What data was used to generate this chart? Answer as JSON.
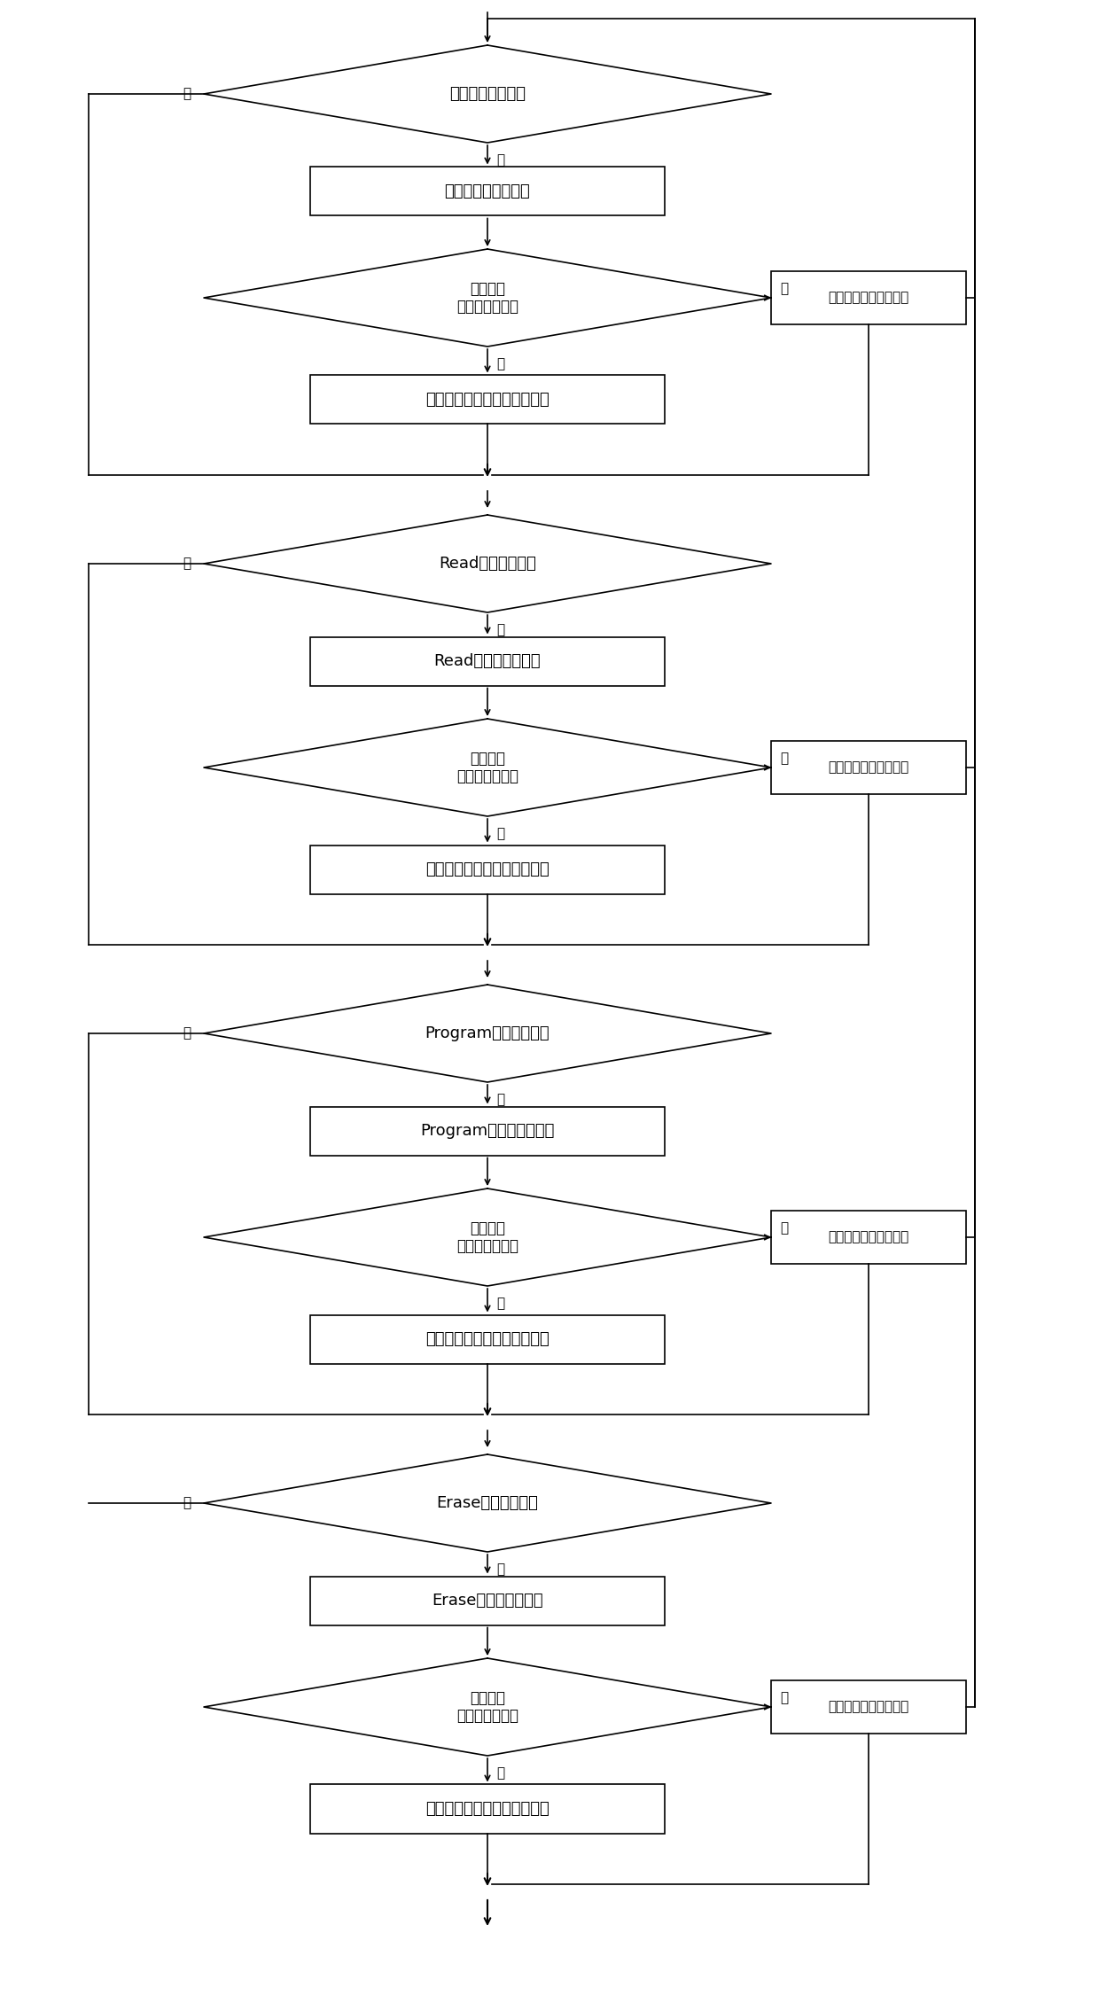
{
  "bg_color": "#ffffff",
  "line_color": "#000000",
  "text_color": "#000000",
  "box_fill": "#ffffff",
  "font_size": 13,
  "small_font": 11,
  "sections": [
    {
      "diamond_text": "配置队列是否为空",
      "rect1_text": "配置队列取一个命令",
      "diamond2_text": "查策略表\n能否在通道执行",
      "rect2_text": "下发命令，并挂入待完成队列",
      "side_text": "挂入相应等待队列队尾"
    },
    {
      "diamond_text": "Read队列是否为空",
      "rect1_text": "Read队列取一个命令",
      "diamond2_text": "查策略表\n能否在通道执行",
      "rect2_text": "下发命令，并挂入待完成队列",
      "side_text": "挂入相应等待队列队尾"
    },
    {
      "diamond_text": "Program队列是否为空",
      "rect1_text": "Program队列取一个命令",
      "diamond2_text": "查策略表\n能否在通道执行",
      "rect2_text": "下发命令，并挂入待完成队列",
      "side_text": "挂入相应等待队列队尾"
    },
    {
      "diamond_text": "Erase队列是否为空",
      "rect1_text": "Erase队列取一个命令",
      "diamond2_text": "查策略表\n能否在通道执行",
      "rect2_text": "下发命令，并挂入待完成队列",
      "side_text": "挂入相应等待队列队尾"
    }
  ],
  "yes_label": "是",
  "no_label": "否"
}
